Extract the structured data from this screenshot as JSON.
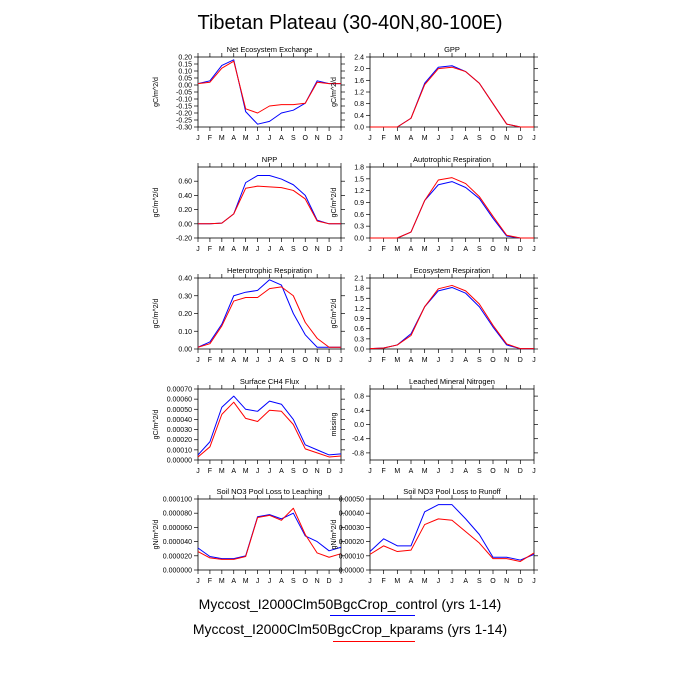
{
  "figure_title": "Tibetan Plateau (30-40N,80-100E)",
  "colors": {
    "control": "#0000ff",
    "kparams": "#ff0000",
    "axis": "#000000"
  },
  "legend": [
    {
      "label": "Myccost_I2000Clm50BgcCrop_control (yrs 1-14)",
      "color": "#0000ff"
    },
    {
      "label": "Myccost_I2000Clm50BgcCrop_kparams (yrs 1-14)",
      "color": "#ff0000"
    }
  ],
  "chart_data": [
    {
      "type": "line",
      "title": "Net Ecosystem Exchange",
      "ylabel": "gC/m^2/d",
      "categories": [
        "J",
        "F",
        "M",
        "A",
        "M",
        "J",
        "J",
        "A",
        "S",
        "O",
        "N",
        "D",
        "J"
      ],
      "ylim": [
        -0.3,
        0.2
      ],
      "yticks": [
        "0.20",
        "0.15",
        "0.10",
        "0.05",
        "0.00",
        "-0.05",
        "-0.10",
        "-0.15",
        "-0.20",
        "-0.25",
        "-0.30"
      ],
      "series": [
        {
          "name": "Myccost_I2000Clm50BgcCrop_control (yrs 1-14)",
          "values": [
            0.01,
            0.03,
            0.14,
            0.18,
            -0.19,
            -0.28,
            -0.26,
            -0.2,
            -0.18,
            -0.13,
            0.03,
            0.01,
            0.01
          ]
        },
        {
          "name": "Myccost_I2000Clm50BgcCrop_kparams (yrs 1-14)",
          "values": [
            0.01,
            0.02,
            0.12,
            0.17,
            -0.17,
            -0.2,
            -0.15,
            -0.14,
            -0.14,
            -0.13,
            0.02,
            0.01,
            0.01
          ]
        }
      ]
    },
    {
      "type": "line",
      "title": "GPP",
      "ylabel": "gC/m^2/d",
      "categories": [
        "J",
        "F",
        "M",
        "A",
        "M",
        "J",
        "J",
        "A",
        "S",
        "O",
        "N",
        "D",
        "J"
      ],
      "ylim": [
        0,
        2.4
      ],
      "yticks": [
        "2.4",
        "2.0",
        "1.6",
        "1.2",
        "0.8",
        "0.4",
        "0.0"
      ],
      "series": [
        {
          "name": "Myccost_I2000Clm50BgcCrop_control (yrs 1-14)",
          "values": [
            0.0,
            0.0,
            0.0,
            0.3,
            1.5,
            2.05,
            2.1,
            1.9,
            1.5,
            0.8,
            0.1,
            0.0,
            0.0
          ]
        },
        {
          "name": "Myccost_I2000Clm50BgcCrop_kparams (yrs 1-14)",
          "values": [
            0.0,
            0.0,
            0.0,
            0.3,
            1.45,
            2.0,
            2.05,
            1.9,
            1.5,
            0.8,
            0.1,
            0.0,
            0.0
          ]
        }
      ]
    },
    {
      "type": "line",
      "title": "NPP",
      "ylabel": "gC/m^2/d",
      "categories": [
        "J",
        "F",
        "M",
        "A",
        "M",
        "J",
        "J",
        "A",
        "S",
        "O",
        "N",
        "D",
        "J"
      ],
      "ylim": [
        -0.2,
        0.8
      ],
      "yticks": [
        "0.60",
        "0.40",
        "0.20",
        "0.00",
        "-0.20"
      ],
      "series": [
        {
          "name": "Myccost_I2000Clm50BgcCrop_control (yrs 1-14)",
          "values": [
            0.0,
            0.0,
            0.01,
            0.14,
            0.58,
            0.68,
            0.68,
            0.63,
            0.55,
            0.4,
            0.05,
            0.0,
            0.0
          ]
        },
        {
          "name": "Myccost_I2000Clm50BgcCrop_kparams (yrs 1-14)",
          "values": [
            0.0,
            0.0,
            0.01,
            0.14,
            0.5,
            0.53,
            0.52,
            0.51,
            0.47,
            0.35,
            0.04,
            0.0,
            0.0
          ]
        }
      ]
    },
    {
      "type": "line",
      "title": "Autotrophic Respiration",
      "ylabel": "gC/m^2/d",
      "categories": [
        "J",
        "F",
        "M",
        "A",
        "M",
        "J",
        "J",
        "A",
        "S",
        "O",
        "N",
        "D",
        "J"
      ],
      "ylim": [
        0,
        1.8
      ],
      "yticks": [
        "1.8",
        "1.5",
        "1.2",
        "0.9",
        "0.6",
        "0.3",
        "0.0"
      ],
      "series": [
        {
          "name": "Myccost_I2000Clm50BgcCrop_control (yrs 1-14)",
          "values": [
            0.0,
            0.0,
            0.0,
            0.15,
            0.95,
            1.35,
            1.43,
            1.28,
            1.0,
            0.5,
            0.05,
            0.0,
            0.0
          ]
        },
        {
          "name": "Myccost_I2000Clm50BgcCrop_kparams (yrs 1-14)",
          "values": [
            0.0,
            0.0,
            0.0,
            0.15,
            0.95,
            1.47,
            1.53,
            1.38,
            1.05,
            0.55,
            0.07,
            0.0,
            0.0
          ]
        }
      ]
    },
    {
      "type": "line",
      "title": "Heterotrophic Respiration",
      "ylabel": "gC/m^2/d",
      "categories": [
        "J",
        "F",
        "M",
        "A",
        "M",
        "J",
        "J",
        "A",
        "S",
        "O",
        "N",
        "D",
        "J"
      ],
      "ylim": [
        0,
        0.4
      ],
      "yticks": [
        "0.40",
        "0.30",
        "0.20",
        "0.10",
        "0.00"
      ],
      "series": [
        {
          "name": "Myccost_I2000Clm50BgcCrop_control (yrs 1-14)",
          "values": [
            0.01,
            0.04,
            0.14,
            0.3,
            0.32,
            0.33,
            0.39,
            0.36,
            0.2,
            0.08,
            0.01,
            0.01,
            0.01
          ]
        },
        {
          "name": "Myccost_I2000Clm50BgcCrop_kparams (yrs 1-14)",
          "values": [
            0.01,
            0.03,
            0.13,
            0.27,
            0.29,
            0.29,
            0.34,
            0.35,
            0.3,
            0.15,
            0.06,
            0.01,
            0.01
          ]
        }
      ]
    },
    {
      "type": "line",
      "title": "Ecosystem Respiration",
      "ylabel": "gC/m^2/d",
      "categories": [
        "J",
        "F",
        "M",
        "A",
        "M",
        "J",
        "J",
        "A",
        "S",
        "O",
        "N",
        "D",
        "J"
      ],
      "ylim": [
        0,
        2.1
      ],
      "yticks": [
        "2.1",
        "1.8",
        "1.5",
        "1.2",
        "0.9",
        "0.6",
        "0.3",
        "0.0"
      ],
      "series": [
        {
          "name": "Myccost_I2000Clm50BgcCrop_control (yrs 1-14)",
          "values": [
            0.01,
            0.03,
            0.12,
            0.45,
            1.25,
            1.72,
            1.82,
            1.65,
            1.25,
            0.65,
            0.12,
            0.01,
            0.01
          ]
        },
        {
          "name": "Myccost_I2000Clm50BgcCrop_kparams (yrs 1-14)",
          "values": [
            0.01,
            0.03,
            0.12,
            0.4,
            1.25,
            1.78,
            1.88,
            1.72,
            1.33,
            0.7,
            0.15,
            0.01,
            0.01
          ]
        }
      ]
    },
    {
      "type": "line",
      "title": "Surface CH4 Flux",
      "ylabel": "gC/m^2/d",
      "categories": [
        "J",
        "F",
        "M",
        "A",
        "M",
        "J",
        "J",
        "A",
        "S",
        "O",
        "N",
        "D",
        "J"
      ],
      "ylim": [
        0,
        0.0007
      ],
      "yticks": [
        "0.00070",
        "0.00060",
        "0.00050",
        "0.00040",
        "0.00030",
        "0.00020",
        "0.00010",
        "0.00000"
      ],
      "series": [
        {
          "name": "Myccost_I2000Clm50BgcCrop_control (yrs 1-14)",
          "values": [
            5e-05,
            0.00018,
            0.00052,
            0.00063,
            0.0005,
            0.00048,
            0.00058,
            0.00055,
            0.0004,
            0.00015,
            0.0001,
            5e-05,
            6e-05
          ]
        },
        {
          "name": "Myccost_I2000Clm50BgcCrop_kparams (yrs 1-14)",
          "values": [
            3e-05,
            0.00013,
            0.00045,
            0.00057,
            0.00041,
            0.00038,
            0.00049,
            0.00048,
            0.00035,
            0.00011,
            7e-05,
            3e-05,
            4e-05
          ]
        }
      ]
    },
    {
      "type": "line",
      "title": "Leached Mineral Nitrogen",
      "ylabel": "missing",
      "categories": [
        "J",
        "F",
        "M",
        "A",
        "M",
        "J",
        "J",
        "A",
        "S",
        "O",
        "N",
        "D",
        "J"
      ],
      "ylim": [
        -1.0,
        1.0
      ],
      "yticks": [
        "0.8",
        "0.4",
        "0.0",
        "-0.4",
        "-0.8"
      ],
      "series": []
    },
    {
      "type": "line",
      "title": "Soil NO3 Pool Loss to Leaching",
      "ylabel": "gN/m^2/d",
      "categories": [
        "J",
        "F",
        "M",
        "A",
        "M",
        "J",
        "J",
        "A",
        "S",
        "O",
        "N",
        "D",
        "J"
      ],
      "ylim": [
        0,
        0.0001
      ],
      "yticks": [
        "0.000100",
        "0.000080",
        "0.000060",
        "0.000040",
        "0.000020",
        "0.000000"
      ],
      "series": [
        {
          "name": "Myccost_I2000Clm50BgcCrop_control (yrs 1-14)",
          "values": [
            3.1e-05,
            1.9e-05,
            1.6e-05,
            1.6e-05,
            2e-05,
            7.5e-05,
            7.8e-05,
            7.2e-05,
            8e-05,
            4.8e-05,
            4e-05,
            2.7e-05,
            3.2e-05
          ]
        },
        {
          "name": "Myccost_I2000Clm50BgcCrop_kparams (yrs 1-14)",
          "values": [
            2.6e-05,
            1.7e-05,
            1.5e-05,
            1.5e-05,
            1.9e-05,
            7.4e-05,
            7.7e-05,
            7e-05,
            8.7e-05,
            5e-05,
            2.4e-05,
            1.8e-05,
            2.3e-05
          ]
        }
      ]
    },
    {
      "type": "line",
      "title": "Soil NO3 Pool Loss to Runoff",
      "ylabel": "gN/m^2/d",
      "categories": [
        "J",
        "F",
        "M",
        "A",
        "M",
        "J",
        "J",
        "A",
        "S",
        "O",
        "N",
        "D",
        "J"
      ],
      "ylim": [
        0,
        0.0005
      ],
      "yticks": [
        "0.00050",
        "0.00040",
        "0.00030",
        "0.00020",
        "0.00010",
        "0.00000"
      ],
      "series": [
        {
          "name": "Myccost_I2000Clm50BgcCrop_control (yrs 1-14)",
          "values": [
            0.00013,
            0.00022,
            0.00017,
            0.00017,
            0.00041,
            0.00046,
            0.00046,
            0.00036,
            0.00025,
            9e-05,
            9e-05,
            7e-05,
            0.00011
          ]
        },
        {
          "name": "Myccost_I2000Clm50BgcCrop_kparams (yrs 1-14)",
          "values": [
            0.00011,
            0.00017,
            0.00013,
            0.00014,
            0.00032,
            0.00036,
            0.00035,
            0.00027,
            0.00019,
            8e-05,
            8e-05,
            6e-05,
            0.00012
          ]
        }
      ]
    }
  ]
}
